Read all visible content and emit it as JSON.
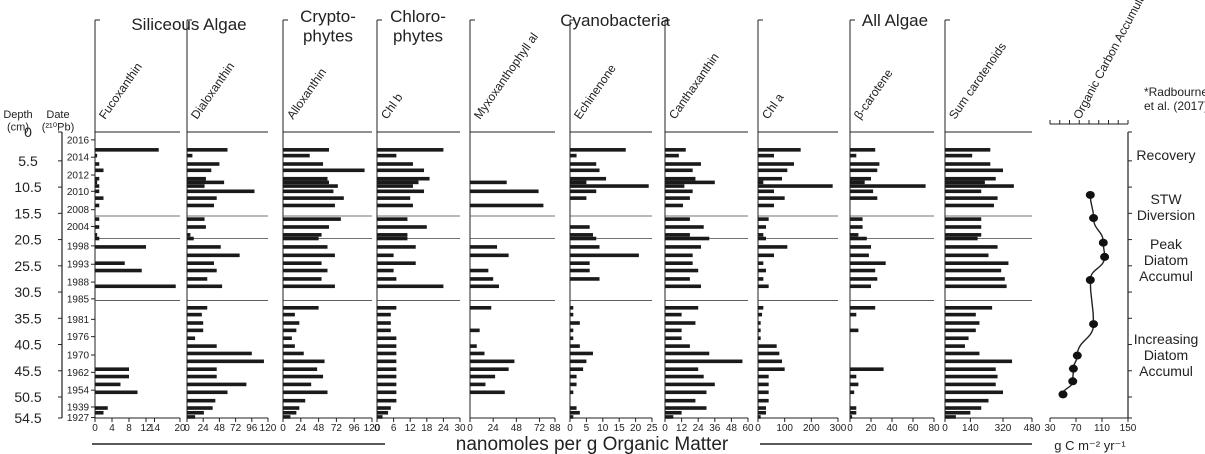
{
  "groups": [
    "Siliceous Algae",
    "Crypto-\nphytes",
    "Chloro-\nphytes",
    "Cyanobacteria",
    "All Algae"
  ],
  "depth_header": "Depth\n(cm)",
  "date_header": "Date\n(²¹⁰Pb)",
  "xlabel_main": "nanomoles per g Organic Matter",
  "xlabel_oc": "g C m⁻² yr⁻¹",
  "citation": "*Radbourne\net al. (2017)",
  "zones": [
    "Recovery",
    "STW\nDiversion",
    "Peak\nDiatom\nAccumul",
    "Increasing\nDiatom\nAccumul"
  ],
  "chart_data": {
    "type": "bar",
    "orientation": "horizontal",
    "ylabel": "Depth (cm)",
    "ylim": [
      0,
      54.5
    ],
    "depth_ticks": [
      0,
      5.5,
      10.5,
      15.5,
      20.5,
      25.5,
      30.5,
      35.5,
      40.5,
      45.5,
      50.5,
      54.5
    ],
    "date_ticks": [
      {
        "label": "2016",
        "depth": 1.5
      },
      {
        "label": "2014",
        "depth": 4.8
      },
      {
        "label": "2012",
        "depth": 8.2
      },
      {
        "label": "2010",
        "depth": 11.3
      },
      {
        "label": "2008",
        "depth": 14.8
      },
      {
        "label": "2004",
        "depth": 18.0
      },
      {
        "label": "1998",
        "depth": 21.7
      },
      {
        "label": "1993",
        "depth": 25.2
      },
      {
        "label": "1988",
        "depth": 28.6
      },
      {
        "label": "1985",
        "depth": 31.8
      },
      {
        "label": "1981",
        "depth": 35.7
      },
      {
        "label": "1976",
        "depth": 39.0
      },
      {
        "label": "1970",
        "depth": 42.5
      },
      {
        "label": "1962",
        "depth": 45.8
      },
      {
        "label": "1954",
        "depth": 49.2
      },
      {
        "label": "1939",
        "depth": 52.4
      },
      {
        "label": "1927",
        "depth": 54.4
      }
    ],
    "zone_boundaries": [
      16.0,
      20.3,
      32.1
    ],
    "depths": [
      3.4,
      4.5,
      6.1,
      7.3,
      8.9,
      9.6,
      10.3,
      11.3,
      12.6,
      14.0,
      16.6,
      18.1,
      19.6,
      20.3,
      21.9,
      23.5,
      25.0,
      26.4,
      28.0,
      29.4,
      30.7,
      31.9,
      33.5,
      34.8,
      36.4,
      37.8,
      39.3,
      40.8,
      42.2,
      43.7,
      45.2,
      46.6,
      48.1,
      49.6,
      51.2,
      52.6,
      53.5,
      54.3
    ],
    "series": [
      {
        "name": "Fucoxanthin",
        "max": 20,
        "ticks": [
          "0",
          "4",
          "8",
          "12",
          "14",
          "20"
        ],
        "values": [
          15,
          0.5,
          1,
          2,
          1,
          0.5,
          1,
          1,
          2,
          1,
          1,
          1,
          0.5,
          1,
          12,
          0,
          7,
          11,
          0,
          19,
          0,
          0,
          0,
          0,
          0,
          0,
          0,
          0,
          0,
          0,
          8,
          8,
          6,
          10,
          0,
          3,
          2,
          0
        ]
      },
      {
        "name": "Dialoxanthin",
        "max": 120,
        "ticks": [
          "0",
          "24",
          "48",
          "72",
          "96",
          "120"
        ],
        "values": [
          60,
          8,
          48,
          36,
          28,
          55,
          26,
          100,
          44,
          40,
          26,
          28,
          5,
          10,
          50,
          78,
          40,
          44,
          30,
          52,
          0,
          0,
          30,
          22,
          24,
          24,
          12,
          44,
          96,
          114,
          44,
          44,
          88,
          60,
          42,
          38,
          25,
          12
        ]
      },
      {
        "name": "Alloxanthin",
        "max": 120,
        "ticks": [
          "0",
          "24",
          "48",
          "72",
          "96",
          "120"
        ],
        "values": [
          62,
          36,
          54,
          110,
          60,
          62,
          74,
          68,
          82,
          70,
          78,
          62,
          52,
          48,
          60,
          70,
          52,
          60,
          52,
          70,
          0,
          0,
          48,
          16,
          22,
          18,
          12,
          16,
          28,
          56,
          46,
          54,
          38,
          60,
          30,
          22,
          18,
          10
        ]
      },
      {
        "name": "Chl b",
        "max": 30,
        "ticks": [
          "0",
          "6",
          "12",
          "18",
          "24",
          "30"
        ],
        "values": [
          24,
          7,
          13,
          17,
          19,
          15,
          13,
          17,
          12,
          13,
          11,
          18,
          11,
          11,
          14,
          6,
          14,
          6,
          7,
          24,
          0,
          0,
          7,
          5,
          5,
          5,
          7,
          7,
          7,
          7,
          7,
          7,
          7,
          7,
          7,
          5,
          4,
          2
        ]
      },
      {
        "name": "Myxoxanthophyll al",
        "max": 88,
        "ticks": [
          "0",
          "24",
          "48",
          "72",
          "88"
        ],
        "values": [
          0,
          0,
          0,
          0,
          0,
          38,
          0,
          71,
          0,
          76,
          0,
          0,
          0,
          0,
          28,
          40,
          0,
          19,
          24,
          30,
          0,
          0,
          22,
          0,
          0,
          10,
          0,
          7,
          15,
          46,
          40,
          26,
          16,
          36,
          0,
          0,
          0,
          0
        ]
      },
      {
        "name": "Echinenone",
        "max": 25,
        "ticks": [
          "0",
          "5",
          "10",
          "15",
          "20",
          "25"
        ],
        "values": [
          17,
          2,
          8,
          9,
          11,
          5,
          24,
          8,
          5,
          0,
          0,
          6,
          7,
          8,
          9,
          21,
          6,
          6,
          9,
          0,
          0,
          0,
          1,
          1,
          3,
          1,
          1,
          3,
          7,
          5,
          4,
          2,
          2,
          1,
          0,
          2,
          3,
          1
        ]
      },
      {
        "name": "Canthaxanthin",
        "max": 60,
        "ticks": [
          "0",
          "12",
          "24",
          "36",
          "48",
          "60"
        ],
        "values": [
          15,
          10,
          26,
          20,
          22,
          36,
          14,
          20,
          18,
          13,
          18,
          28,
          18,
          32,
          26,
          20,
          20,
          24,
          18,
          26,
          0,
          0,
          24,
          12,
          22,
          12,
          12,
          18,
          32,
          56,
          24,
          28,
          36,
          30,
          22,
          30,
          12,
          6
        ]
      },
      {
        "name": "Chl a",
        "max": 300,
        "ticks": [
          "0",
          "100",
          "200",
          "300"
        ],
        "values": [
          160,
          60,
          135,
          110,
          90,
          20,
          280,
          60,
          100,
          60,
          40,
          30,
          20,
          30,
          110,
          60,
          20,
          30,
          20,
          40,
          0,
          0,
          20,
          15,
          10,
          10,
          10,
          70,
          80,
          90,
          100,
          40,
          40,
          40,
          40,
          30,
          30,
          10
        ]
      },
      {
        "name": "β-carotene",
        "max": 80,
        "ticks": [
          "0",
          "20",
          "40",
          "60",
          "80"
        ],
        "values": [
          24,
          6,
          28,
          26,
          20,
          14,
          72,
          22,
          26,
          0,
          12,
          12,
          8,
          16,
          20,
          18,
          34,
          24,
          26,
          20,
          0,
          0,
          24,
          6,
          0,
          8,
          0,
          0,
          0,
          0,
          32,
          6,
          8,
          4,
          0,
          6,
          6,
          2
        ]
      },
      {
        "name": "Sum carotenoids",
        "max": 480,
        "ticks": [
          "0",
          "140",
          "320",
          "480"
        ],
        "values": [
          250,
          150,
          250,
          320,
          280,
          220,
          380,
          200,
          290,
          270,
          200,
          200,
          200,
          180,
          290,
          240,
          350,
          310,
          330,
          340,
          0,
          0,
          260,
          170,
          190,
          170,
          130,
          110,
          190,
          370,
          280,
          290,
          280,
          320,
          240,
          200,
          140,
          60
        ]
      }
    ],
    "organic_carbon": {
      "name": "Organic Carbon Accumulation*",
      "xlim": [
        30,
        150
      ],
      "ticks": [
        "30",
        "70",
        "110",
        "150"
      ],
      "points": [
        [
          92,
          12.0
        ],
        [
          97,
          16.4
        ],
        [
          112,
          21.1
        ],
        [
          114,
          23.8
        ],
        [
          92,
          28.2
        ],
        [
          97,
          36.6
        ],
        [
          72,
          42.6
        ],
        [
          66,
          45.1
        ],
        [
          65,
          47.5
        ],
        [
          50,
          50.0
        ]
      ]
    }
  }
}
